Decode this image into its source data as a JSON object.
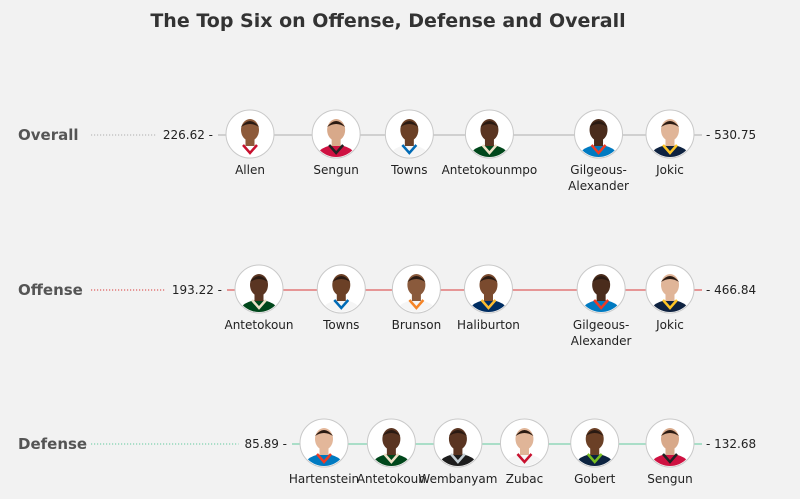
{
  "chart_data": {
    "type": "scatter",
    "title": "The Top Six on Offense, Defense and Overall",
    "rows": [
      {
        "label": "Overall",
        "color": "#555555",
        "line_color": "#bdbdbd",
        "min": 226.62,
        "max": 530.75,
        "min_label": "226.62 -",
        "max_label": "- 530.75",
        "players": [
          {
            "name": [
              "Allen"
            ],
            "value": 226.62,
            "jersey": "#ffffff",
            "trim": "#c8102e",
            "skin": "#8d5a3a"
          },
          {
            "name": [
              "Sengun"
            ],
            "value": 289.0,
            "jersey": "#ce1141",
            "trim": "#222222",
            "skin": "#d8a98a"
          },
          {
            "name": [
              "Towns"
            ],
            "value": 342.0,
            "jersey": "#f5f5f5",
            "trim": "#006bb6",
            "skin": "#6b4026"
          },
          {
            "name": [
              "Antetokounmpo"
            ],
            "value": 400.0,
            "jersey": "#00471b",
            "trim": "#eee1c6",
            "skin": "#5a3522"
          },
          {
            "name": [
              "Gilgeous-",
              "Alexander"
            ],
            "value": 479.0,
            "jersey": "#007ac1",
            "trim": "#ef3b24",
            "skin": "#4a2c1c"
          },
          {
            "name": [
              "Jokic"
            ],
            "value": 530.75,
            "jersey": "#0e2240",
            "trim": "#fec524",
            "skin": "#e0b598"
          }
        ]
      },
      {
        "label": "Offense",
        "color": "#555555",
        "line_color": "#e06060",
        "min": 193.22,
        "max": 466.84,
        "min_label": "193.22 -",
        "max_label": "- 466.84",
        "players": [
          {
            "name": [
              "Antetokoun"
            ],
            "value": 193.22,
            "jersey": "#00471b",
            "trim": "#eee1c6",
            "skin": "#5a3522"
          },
          {
            "name": [
              "Towns"
            ],
            "value": 248.0,
            "jersey": "#f5f5f5",
            "trim": "#006bb6",
            "skin": "#6b4026"
          },
          {
            "name": [
              "Brunson"
            ],
            "value": 298.0,
            "jersey": "#f5f5f5",
            "trim": "#f58426",
            "skin": "#8a5a3c"
          },
          {
            "name": [
              "Haliburton"
            ],
            "value": 346.0,
            "jersey": "#002d62",
            "trim": "#fdbb30",
            "skin": "#7a4a2e"
          },
          {
            "name": [
              "Gilgeous-",
              "Alexander"
            ],
            "value": 421.0,
            "jersey": "#007ac1",
            "trim": "#ef3b24",
            "skin": "#4a2c1c"
          },
          {
            "name": [
              "Jokic"
            ],
            "value": 466.84,
            "jersey": "#0e2240",
            "trim": "#fec524",
            "skin": "#e0b598"
          }
        ]
      },
      {
        "label": "Defense",
        "color": "#555555",
        "line_color": "#7fd3b0",
        "min": 85.89,
        "max": 132.68,
        "min_label": "85.89 -",
        "max_label": "- 132.68",
        "players": [
          {
            "name": [
              "Hartenstein"
            ],
            "value": 85.89,
            "jersey": "#007ac1",
            "trim": "#ef3b24",
            "skin": "#e3b79a"
          },
          {
            "name": [
              "Antetokoun"
            ],
            "value": 95.0,
            "jersey": "#00471b",
            "trim": "#eee1c6",
            "skin": "#5a3522"
          },
          {
            "name": [
              "Wembanyam"
            ],
            "value": 104.0,
            "jersey": "#1d1d1d",
            "trim": "#c4ced4",
            "skin": "#5a3522"
          },
          {
            "name": [
              "Zubac"
            ],
            "value": 113.0,
            "jersey": "#f5f5f5",
            "trim": "#c8102e",
            "skin": "#e0b598"
          },
          {
            "name": [
              "Gobert"
            ],
            "value": 122.5,
            "jersey": "#0c2340",
            "trim": "#78be20",
            "skin": "#6b4026"
          },
          {
            "name": [
              "Sengun"
            ],
            "value": 132.68,
            "jersey": "#ce1141",
            "trim": "#222222",
            "skin": "#d8a98a"
          }
        ]
      }
    ]
  }
}
